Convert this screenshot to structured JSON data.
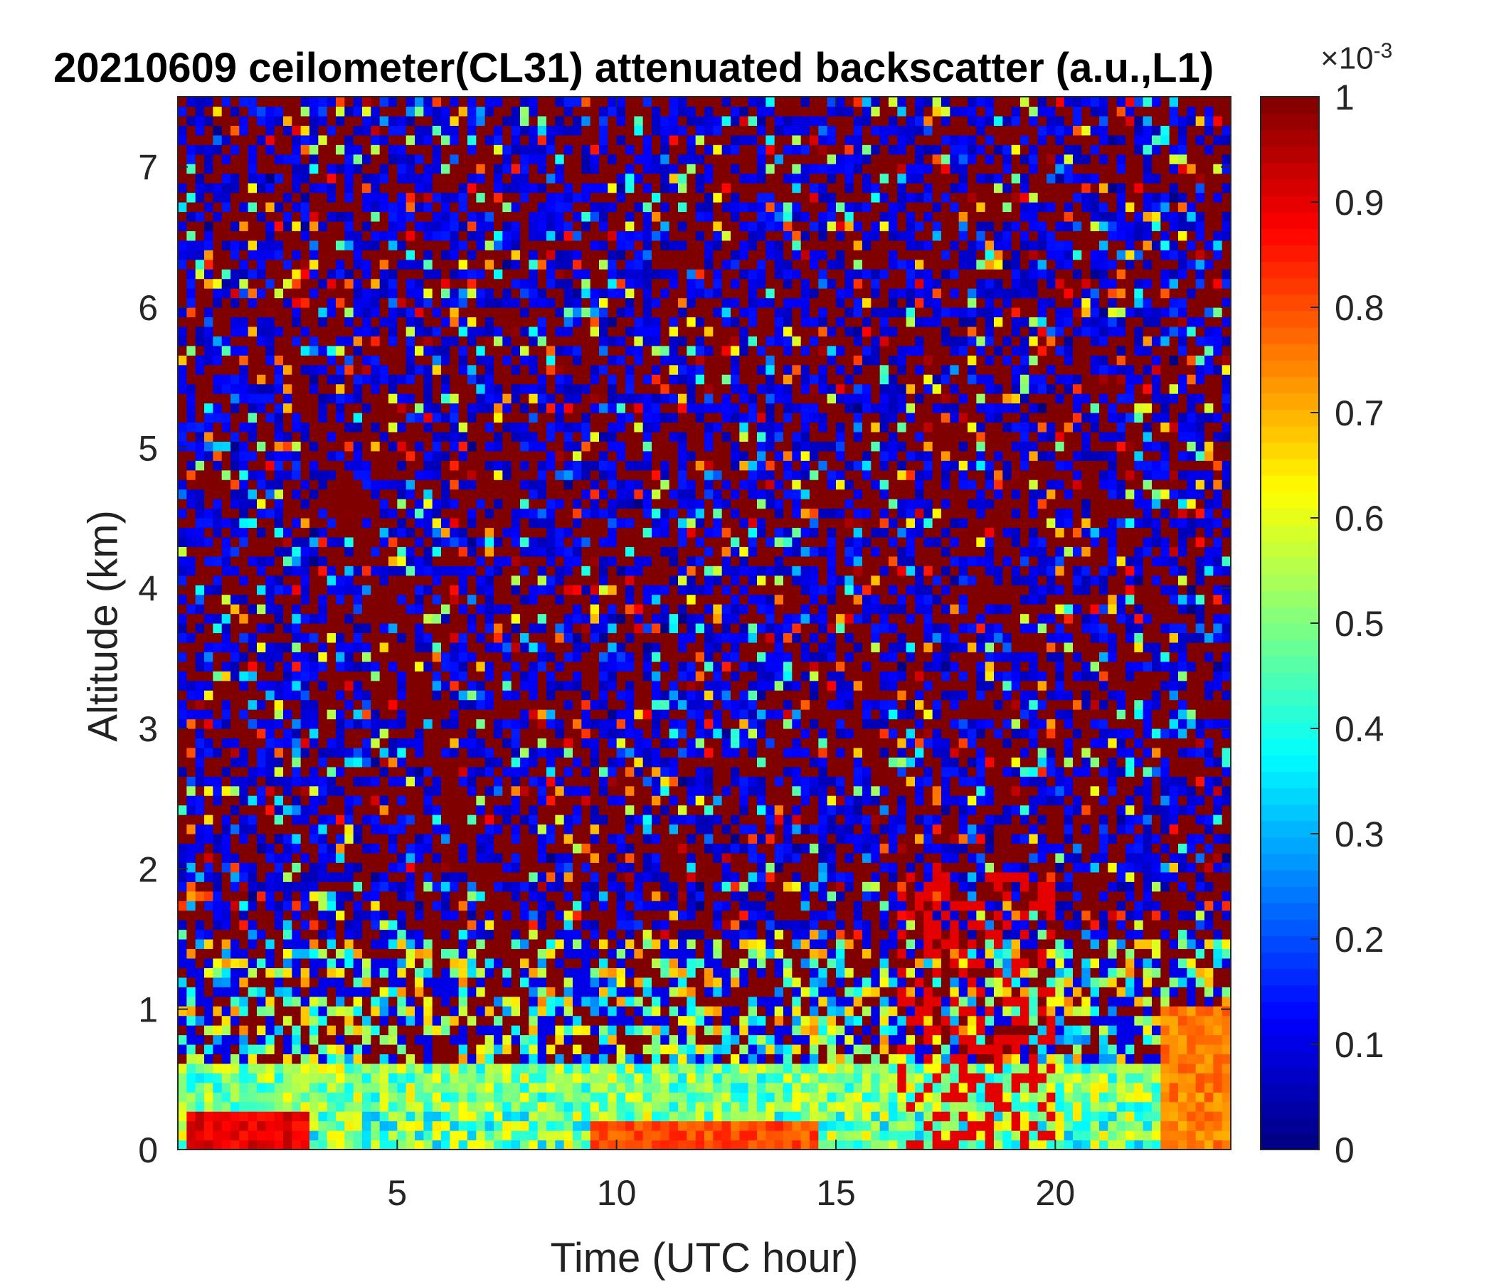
{
  "chart_data": {
    "type": "heatmap",
    "title": "20210609 ceilometer(CL31) attenuated backscatter (a.u.,L1)",
    "xlabel": "Time (UTC hour)",
    "ylabel": "Altitude (km)",
    "xlim": [
      0,
      24
    ],
    "ylim": [
      0,
      7.5
    ],
    "x_ticks": [
      "5",
      "10",
      "15",
      "20"
    ],
    "x_tick_values": [
      5,
      10,
      15,
      20
    ],
    "y_ticks": [
      "0",
      "1",
      "2",
      "3",
      "4",
      "5",
      "6",
      "7"
    ],
    "y_tick_values": [
      0,
      1,
      2,
      3,
      4,
      5,
      6,
      7
    ],
    "colorbar": {
      "colormap": "jet",
      "range": [
        0,
        0.001
      ],
      "ticks": [
        "0",
        "0.1",
        "0.2",
        "0.3",
        "0.4",
        "0.5",
        "0.6",
        "0.7",
        "0.8",
        "0.9",
        "1"
      ],
      "tick_values": [
        0,
        0.1,
        0.2,
        0.3,
        0.4,
        0.5,
        0.6,
        0.7,
        0.8,
        0.9,
        1
      ],
      "exponent_base": "×10",
      "exponent": "-3"
    },
    "features": [
      {
        "kind": "surface layer",
        "x": [
          0.3,
          3.0
        ],
        "y_top": 0.3,
        "level": 0.95
      },
      {
        "kind": "surface layer",
        "x": [
          9.5,
          14.5
        ],
        "y_top": 0.2,
        "level": 0.85
      },
      {
        "kind": "boundary layer",
        "x": [
          0,
          24
        ],
        "y_top": 0.6,
        "level": 0.45
      },
      {
        "kind": "descending aerosol layer",
        "x": [
          2.3,
          8.0
        ],
        "y_from": 5.9,
        "y_to": 1.0,
        "level": 1.0
      },
      {
        "kind": "vertical streaks",
        "x": [
          16.5,
          20.0
        ],
        "y_top": 2.0,
        "level": 0.9
      },
      {
        "kind": "surface layer",
        "x": [
          22.5,
          24
        ],
        "y_top": 1.0,
        "level": 0.8
      },
      {
        "kind": "noise background",
        "x": [
          0,
          24
        ],
        "y": [
          1.5,
          7.5
        ],
        "level": "mixed"
      }
    ],
    "grid": false,
    "legend": "colorbar-right"
  }
}
